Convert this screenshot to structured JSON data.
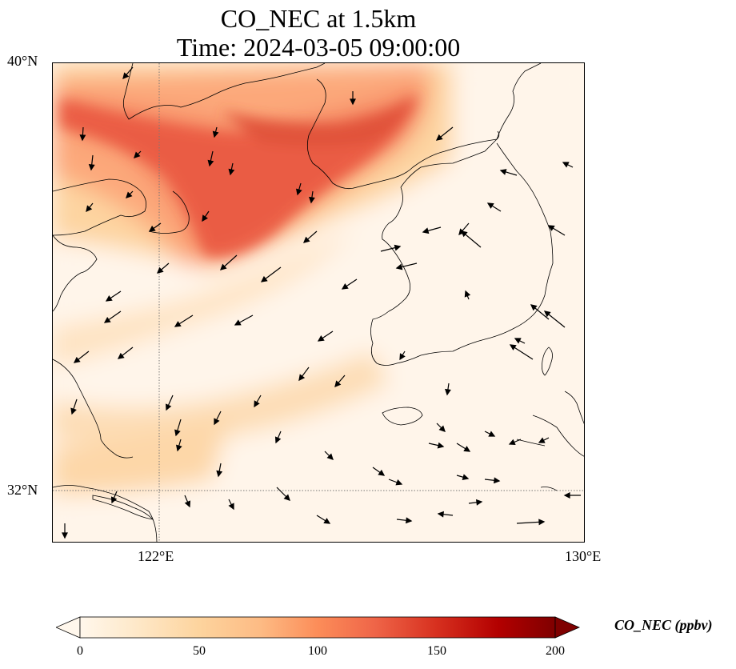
{
  "title": {
    "line1": "CO_NEC at 1.5km",
    "line2": "Time: 2024-03-05 09:00:00"
  },
  "axes": {
    "lat_ticks": [
      {
        "value": 40,
        "label": "40°N"
      },
      {
        "value": 32,
        "label": "32°N"
      }
    ],
    "lon_ticks": [
      {
        "value": 122,
        "label": "122°E"
      },
      {
        "value": 130,
        "label": "130°E"
      }
    ],
    "lon_range": [
      120,
      130
    ],
    "lat_range": [
      31,
      40
    ],
    "gridlines": "dotted at 122°E and 32°N"
  },
  "colorbar": {
    "label": "CO_NEC (ppbv)",
    "ticks": [
      "0",
      "50",
      "100",
      "150",
      "200"
    ],
    "range": [
      0,
      200
    ],
    "colormap": "OrRd",
    "extend": "both",
    "colors": [
      "#fff7ec",
      "#fee8c8",
      "#fdd49e",
      "#fdbb84",
      "#fc8d59",
      "#ef6548",
      "#d7301f",
      "#b30000",
      "#7f0000"
    ]
  },
  "map": {
    "coastline_color": "#000000",
    "wind_vectors": "black arrows showing wind direction"
  }
}
